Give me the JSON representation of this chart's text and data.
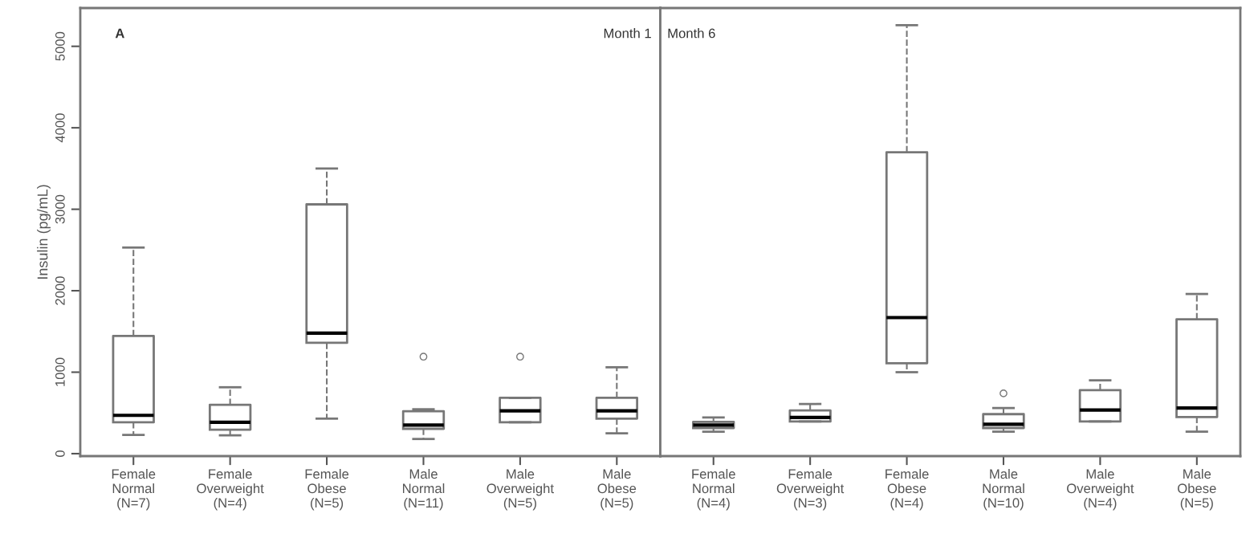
{
  "chart_data": [
    {
      "type": "box",
      "ylabel": "Insulin (pg/mL)",
      "annotations": [
        "A",
        "Month 1"
      ],
      "ylim": [
        -30,
        5470
      ],
      "yticks": [
        0,
        1000,
        2000,
        3000,
        4000,
        5000
      ],
      "grid": false,
      "categories": [
        "Female\nNormal\n(N=7)",
        "Female\nOverweight\n(N=4)",
        "Female\nObese\n(N=5)",
        "Male\nNormal\n(N=11)",
        "Male\nOverweight\n(N=5)",
        "Male\nObese\n(N=5)"
      ],
      "boxes": [
        {
          "low": 230,
          "q1": 385,
          "median": 470,
          "q3": 1445,
          "high": 2530
        },
        {
          "low": 225,
          "q1": 295,
          "median": 385,
          "q3": 600,
          "high": 815
        },
        {
          "low": 430,
          "q1": 1360,
          "median": 1480,
          "q3": 3060,
          "high": 3500
        },
        {
          "low": 180,
          "q1": 305,
          "median": 350,
          "q3": 520,
          "high": 545,
          "outliers": [
            1190
          ]
        },
        {
          "low": 385,
          "q1": 385,
          "median": 525,
          "q3": 685,
          "high": 685,
          "outliers": [
            1190
          ]
        },
        {
          "low": 250,
          "q1": 430,
          "median": 525,
          "q3": 685,
          "high": 1060
        }
      ]
    },
    {
      "type": "box",
      "annotations": [
        "Month 6"
      ],
      "ylim": [
        -30,
        5470
      ],
      "tick_labels": "x",
      "grid": false,
      "categories": [
        "Female\nNormal\n(N=4)",
        "Female\nOverweight\n(N=3)",
        "Female\nObese\n(N=4)",
        "Male\nNormal\n(N=10)",
        "Male\nOverweight\n(N=4)",
        "Male\nObese\n(N=5)"
      ],
      "boxes": [
        {
          "low": 270,
          "q1": 315,
          "median": 350,
          "q3": 390,
          "high": 445
        },
        {
          "low": 395,
          "q1": 395,
          "median": 445,
          "q3": 530,
          "high": 610
        },
        {
          "low": 1000,
          "q1": 1110,
          "median": 1670,
          "q3": 3700,
          "high": 5260
        },
        {
          "low": 270,
          "q1": 315,
          "median": 360,
          "q3": 485,
          "high": 560,
          "outliers": [
            740
          ]
        },
        {
          "low": 395,
          "q1": 395,
          "median": 535,
          "q3": 780,
          "high": 900
        },
        {
          "low": 270,
          "q1": 450,
          "median": 560,
          "q3": 1650,
          "high": 1960
        }
      ]
    }
  ]
}
